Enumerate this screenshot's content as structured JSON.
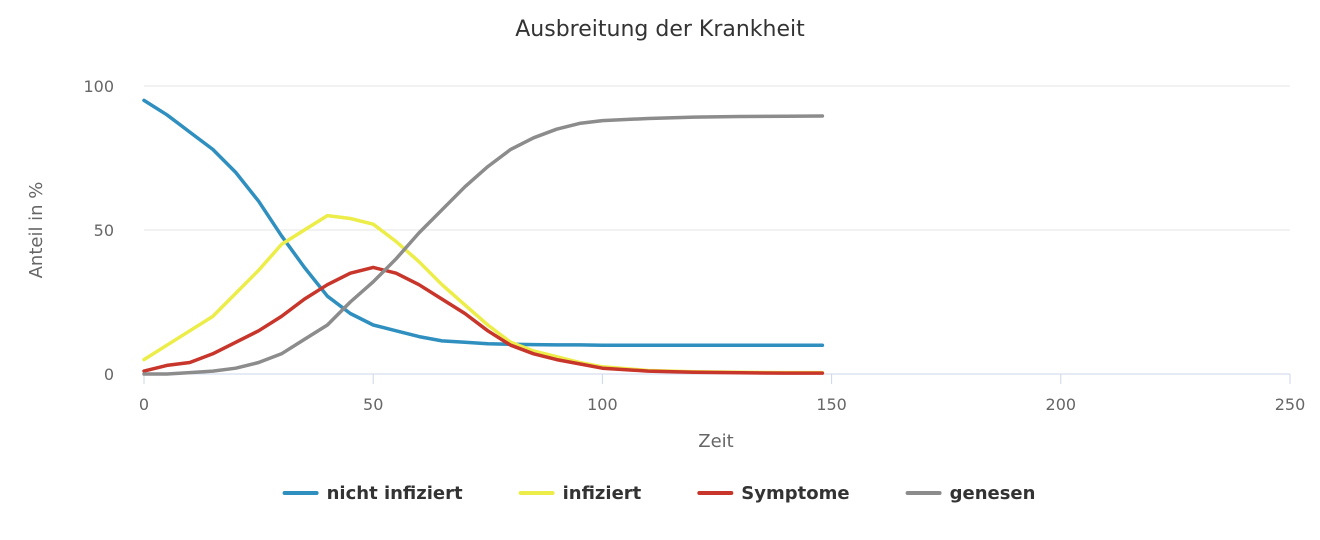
{
  "chart_data": {
    "type": "line",
    "title": "Ausbreitung der Krankheit",
    "xlabel": "Zeit",
    "ylabel": "Anteil in %",
    "xlim": [
      0,
      250
    ],
    "ylim": [
      0,
      100
    ],
    "x_ticks": [
      "0",
      "50",
      "100",
      "150",
      "200",
      "250"
    ],
    "y_ticks": [
      "0",
      "50",
      "100"
    ],
    "grid": true,
    "legend_position": "bottom",
    "x": [
      0,
      5,
      10,
      15,
      20,
      25,
      30,
      35,
      40,
      45,
      50,
      55,
      60,
      65,
      70,
      75,
      80,
      85,
      90,
      95,
      100,
      110,
      120,
      130,
      140,
      148
    ],
    "series": [
      {
        "name": "nicht infiziert",
        "color": "#2f8fbf",
        "values": [
          95,
          90,
          84,
          78,
          70,
          60,
          48,
          37,
          27,
          21,
          17,
          15,
          13,
          11.5,
          11,
          10.5,
          10.3,
          10.2,
          10.1,
          10.1,
          10,
          10,
          10,
          10,
          10,
          10
        ]
      },
      {
        "name": "infiziert",
        "color": "#eded4a",
        "values": [
          5,
          10,
          15,
          20,
          28,
          36,
          45,
          50,
          55,
          54,
          52,
          46,
          39,
          31,
          24,
          17,
          11,
          8,
          6,
          4,
          2.5,
          1.2,
          0.8,
          0.6,
          0.5,
          0.5
        ]
      },
      {
        "name": "Symptome",
        "color": "#c8352a",
        "values": [
          1,
          3,
          4,
          7,
          11,
          15,
          20,
          26,
          31,
          35,
          37,
          35,
          31,
          26,
          21,
          15,
          10,
          7,
          5,
          3.5,
          2,
          1,
          0.6,
          0.4,
          0.3,
          0.3
        ]
      },
      {
        "name": "genesen",
        "color": "#8c8c8c",
        "values": [
          0,
          0,
          0.5,
          1,
          2,
          4,
          7,
          12,
          17,
          25,
          32,
          40,
          49,
          57,
          65,
          72,
          78,
          82,
          85,
          87,
          88,
          88.7,
          89.2,
          89.4,
          89.5,
          89.6
        ]
      }
    ]
  }
}
